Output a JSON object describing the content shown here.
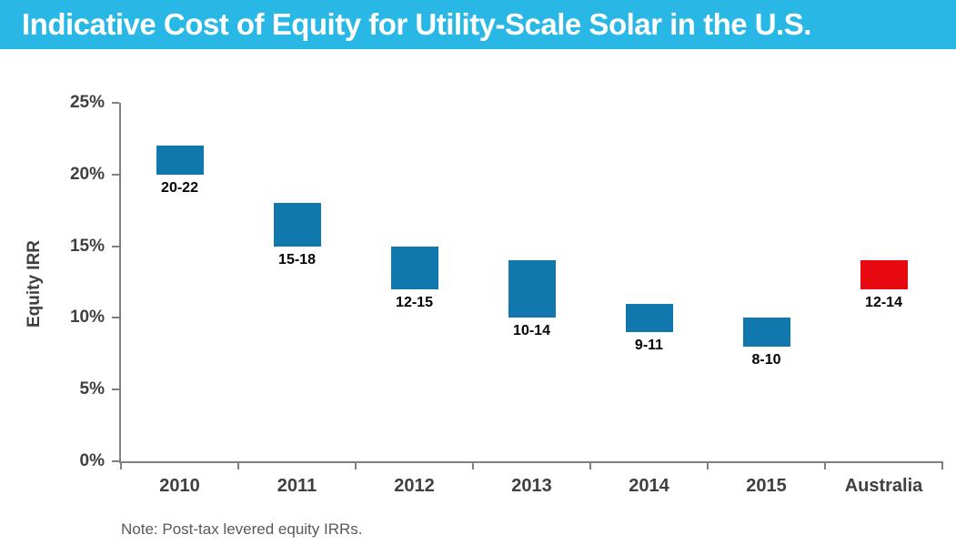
{
  "header": {
    "title": "Indicative Cost of Equity for Utility-Scale Solar in the U.S.",
    "bg_color": "#29b8e5",
    "text_color": "#ffffff"
  },
  "chart_data": {
    "type": "bar",
    "subtype": "floating-range-column",
    "title": "Indicative Cost of Equity for Utility-Scale Solar in the U.S.",
    "ylabel": "Equity IRR",
    "ylim": [
      0,
      25
    ],
    "y_ticks": [
      {
        "value": 0,
        "label": "0%"
      },
      {
        "value": 5,
        "label": "5%"
      },
      {
        "value": 10,
        "label": "10%"
      },
      {
        "value": 15,
        "label": "15%"
      },
      {
        "value": 20,
        "label": "20%"
      },
      {
        "value": 25,
        "label": "25%"
      }
    ],
    "categories": [
      "2010",
      "2011",
      "2012",
      "2013",
      "2014",
      "2015",
      "Australia"
    ],
    "ranges": [
      [
        20,
        22
      ],
      [
        15,
        18
      ],
      [
        12,
        15
      ],
      [
        10,
        14
      ],
      [
        9,
        11
      ],
      [
        8,
        10
      ],
      [
        12,
        14
      ]
    ],
    "range_labels": [
      "20-22",
      "15-18",
      "12-15",
      "10-14",
      "9-11",
      "8-10",
      "12-14"
    ],
    "bar_color": "#1078ac",
    "highlight_category": "Australia",
    "highlight_color": "#e60a10",
    "grid": false,
    "legend": false,
    "note": "Note: Post-tax levered equity IRRs."
  }
}
